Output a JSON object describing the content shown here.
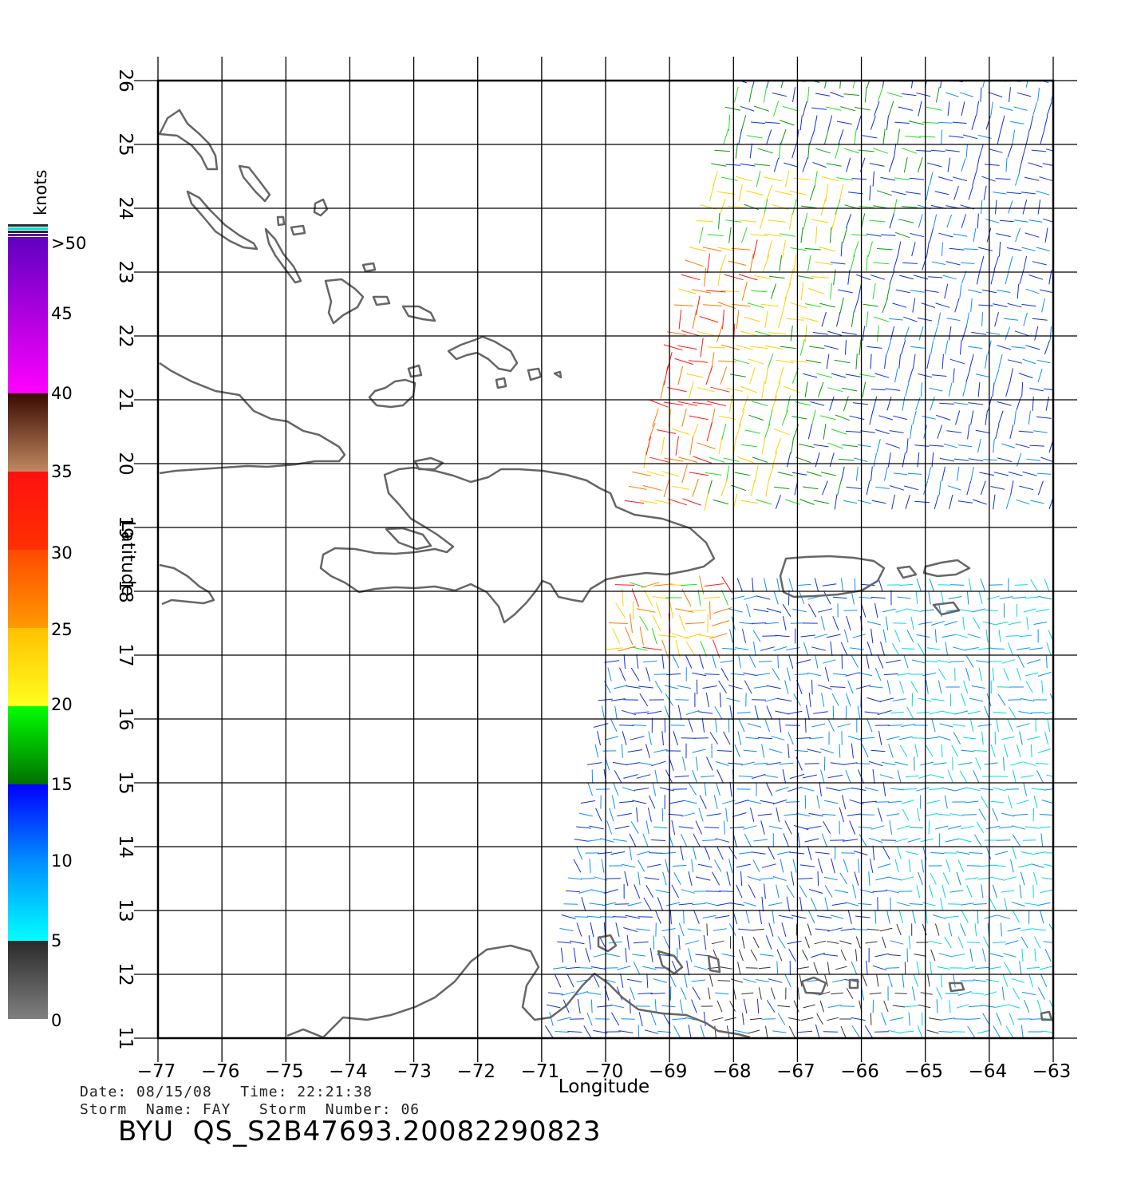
{
  "map": {
    "lon_range": [
      -77,
      -63
    ],
    "lat_range": [
      11,
      26
    ],
    "lon_ticks": [
      "-77",
      "-76",
      "-75",
      "-74",
      "-73",
      "-72",
      "-71",
      "-70",
      "-69",
      "-68",
      "-67",
      "-66",
      "-65",
      "-64",
      "-63"
    ],
    "lat_ticks": [
      "11",
      "12",
      "13",
      "14",
      "15",
      "16",
      "17",
      "18",
      "19",
      "20",
      "21",
      "22",
      "23",
      "24",
      "25",
      "26"
    ],
    "xlabel": "Longitude",
    "ylabel": "Latitude",
    "grid": true,
    "coastline_color": "#666666",
    "grid_color": "#000000"
  },
  "colorbar": {
    "title": "knots",
    "labels": [
      ">50",
      "45",
      "40",
      "35",
      "30",
      "25",
      "20",
      "15",
      "10",
      "5",
      "0"
    ],
    "segments": [
      {
        "from": 0,
        "to": 5,
        "colors": [
          "#808080",
          "#2a2a2a"
        ]
      },
      {
        "from": 5,
        "to": 10,
        "colors": [
          "#00ffff",
          "#0090ff"
        ]
      },
      {
        "from": 10,
        "to": 15,
        "colors": [
          "#0090ff",
          "#0000ff"
        ]
      },
      {
        "from": 15,
        "to": 20,
        "colors": [
          "#007000",
          "#00ff00"
        ]
      },
      {
        "from": 20,
        "to": 25,
        "colors": [
          "#ffff20",
          "#ffc000"
        ]
      },
      {
        "from": 25,
        "to": 30,
        "colors": [
          "#ff9a00",
          "#ff4a00"
        ]
      },
      {
        "from": 30,
        "to": 35,
        "colors": [
          "#ff3000",
          "#ff1010"
        ]
      },
      {
        "from": 35,
        "to": 40,
        "colors": [
          "#c08860",
          "#3a0a00"
        ]
      },
      {
        "from": 40,
        "to": 50,
        "colors": [
          "#ff00ff",
          "#6000c0"
        ]
      }
    ]
  },
  "info": {
    "date_line": "Date: 08/15/08   Time: 22:21:38",
    "storm_line": "Storm  Name: FAY   Storm  Number: 06",
    "file_id": "BYU  QS_S2B47693.20082290823"
  },
  "wind_field": {
    "swath_northern": {
      "lon_west_top": -67.9,
      "lon_west_bottom": -69.6,
      "lat_top": 26,
      "lat_bottom": 19.2,
      "lon_east": -63
    },
    "swath_southern": {
      "lon_west_top": -69.7,
      "lon_west_bottom": -70.9,
      "lat_top": 18.1,
      "lat_bottom": 11,
      "lon_east": -63
    }
  }
}
